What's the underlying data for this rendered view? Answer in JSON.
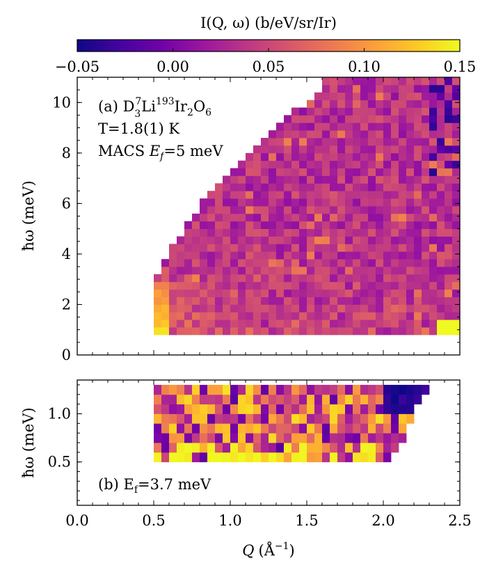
{
  "colorbar": {
    "label": "I(Q, ω) (b/eV/sr/Ir)",
    "vmin": -0.05,
    "vmax": 0.15,
    "ticks": [
      -0.05,
      0.0,
      0.05,
      0.1,
      0.15
    ],
    "tick_labels": [
      "−0.05",
      "0.00",
      "0.05",
      "0.10",
      "0.15"
    ],
    "colormap": "plasma",
    "stops": [
      "#0d0887",
      "#46039f",
      "#7201a8",
      "#9c179e",
      "#bd3786",
      "#d8576b",
      "#ed7953",
      "#fb9f3a",
      "#fdca26",
      "#f0f921"
    ]
  },
  "chart_data": [
    {
      "type": "heatmap",
      "panel": "a",
      "xlabel": "",
      "ylabel": "ħω (meV)",
      "xlim": [
        0.0,
        2.5
      ],
      "ylim": [
        0,
        11
      ],
      "yticks": [
        0,
        2,
        4,
        6,
        8,
        10
      ],
      "ytick_labels": [
        "0",
        "2",
        "4",
        "6",
        "8",
        "10"
      ],
      "xticks": [
        0.0,
        0.5,
        1.0,
        1.5,
        2.0,
        2.5
      ],
      "show_xtick_labels": false,
      "annotation_lines": [
        "(a) D₃⁷Li¹⁹³Ir₂O₆",
        "T=1.8(1) K",
        "MACS E_f=5 meV"
      ],
      "annotation_text": {
        "line1_prefix": "(a) D",
        "line1_sub3": "3",
        "line1_sup7": "7",
        "line1_li": "Li",
        "line1_sup193": "193",
        "line1_ir": "Ir",
        "line1_sub2": "2",
        "line1_o": "O",
        "line1_sub6": "6",
        "line2": "T=1.8(1) K",
        "line3_prefix": "MACS ",
        "line3_var": "E",
        "line3_sub": "f",
        "line3_suffix": "=5 meV"
      },
      "q_start": 0.5,
      "q_end": 2.5,
      "q_step": 0.05,
      "e_bottom": 0.8,
      "e_step": 0.3,
      "rows": 34,
      "edge_q_at_e": [
        [
          0.8,
          0.5
        ],
        [
          2.8,
          0.5
        ],
        [
          4.0,
          0.6
        ],
        [
          5.5,
          0.75
        ],
        [
          7.0,
          0.95
        ],
        [
          8.5,
          1.2
        ],
        [
          9.8,
          1.45
        ],
        [
          10.5,
          1.6
        ],
        [
          11.0,
          1.6
        ]
      ],
      "low_q_hot_region": {
        "q_max": 0.62,
        "e_max": 2.8,
        "value": 0.14
      },
      "high_q_hot_region": {
        "q_min": 2.35,
        "e_max": 1.4,
        "value": 0.15
      },
      "mean_value": 0.035,
      "spread": 0.025
    },
    {
      "type": "heatmap",
      "panel": "b",
      "xlabel": "Q (Å⁻¹)",
      "xlabel_parts": {
        "var": "Q",
        "unit": "(Å",
        "sup": "−1",
        "close": ")"
      },
      "ylabel": "ħω (meV)",
      "xlim": [
        0.0,
        2.5
      ],
      "ylim": [
        0.05,
        1.35
      ],
      "yticks": [
        0.5,
        1.0
      ],
      "ytick_labels": [
        "0.5",
        "1.0"
      ],
      "xticks": [
        0.0,
        0.5,
        1.0,
        1.5,
        2.0,
        2.5
      ],
      "xtick_labels": [
        "0.0",
        "0.5",
        "1.0",
        "1.5",
        "2.0",
        "2.5"
      ],
      "annotation": "(b) E_f=3.7 meV",
      "annotation_text": {
        "prefix": "(b) E",
        "sub": "f",
        "suffix": "=3.7 meV"
      },
      "q_start": 0.5,
      "q_end": 2.3,
      "q_step": 0.05,
      "e_bottom": 0.5,
      "e_step": 0.1,
      "rows": 8,
      "edge_q_at_e": [
        [
          0.5,
          2.05
        ],
        [
          0.8,
          2.15
        ],
        [
          1.1,
          2.22
        ],
        [
          1.3,
          2.3
        ]
      ],
      "mean_value": 0.06,
      "spread": 0.08
    }
  ]
}
